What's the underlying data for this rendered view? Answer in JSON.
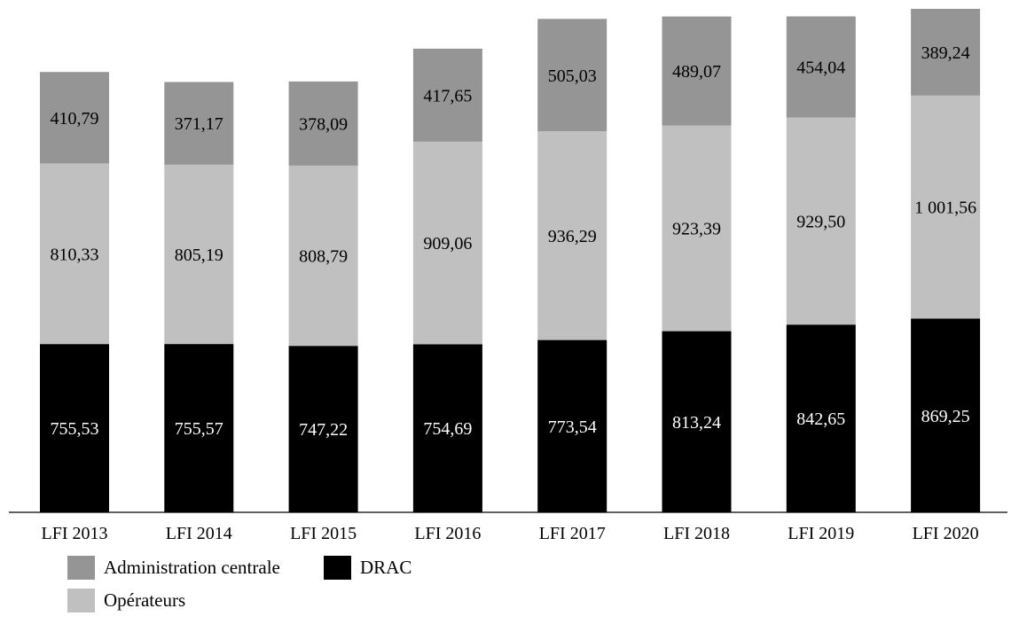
{
  "chart_data": {
    "type": "bar",
    "stacked": true,
    "title": "",
    "xlabel": "",
    "ylabel": "",
    "categories": [
      "LFI 2013",
      "LFI 2014",
      "LFI 2015",
      "LFI 2016",
      "LFI 2017",
      "LFI 2018",
      "LFI 2019",
      "LFI 2020"
    ],
    "series": [
      {
        "name": "DRAC",
        "color": "#000000",
        "values": [
          755.53,
          755.57,
          747.22,
          754.69,
          773.54,
          813.24,
          842.65,
          869.25
        ],
        "labels": [
          "755,53",
          "755,57",
          "747,22",
          "754,69",
          "773,54",
          "813,24",
          "842,65",
          "869,25"
        ]
      },
      {
        "name": "Opérateurs",
        "color": "#c0c0c0",
        "values": [
          810.33,
          805.19,
          808.79,
          909.06,
          936.29,
          923.39,
          929.5,
          1001.56
        ],
        "labels": [
          "810,33",
          "805,19",
          "808,79",
          "909,06",
          "936,29",
          "923,39",
          "929,50",
          "1 001,56"
        ]
      },
      {
        "name": "Administration centrale",
        "color": "#959595",
        "values": [
          410.79,
          371.17,
          378.09,
          417.65,
          505.03,
          489.07,
          454.04,
          389.24
        ],
        "labels": [
          "410,79",
          "371,17",
          "378,09",
          "417,65",
          "505,03",
          "489,07",
          "454,04",
          "389,24"
        ]
      }
    ],
    "ylim": [
      0,
      2260
    ],
    "grid": false,
    "legend_position": "bottom-left"
  },
  "legend": {
    "admin": "Administration centrale",
    "drac": "DRAC",
    "operateurs": "Opérateurs"
  }
}
